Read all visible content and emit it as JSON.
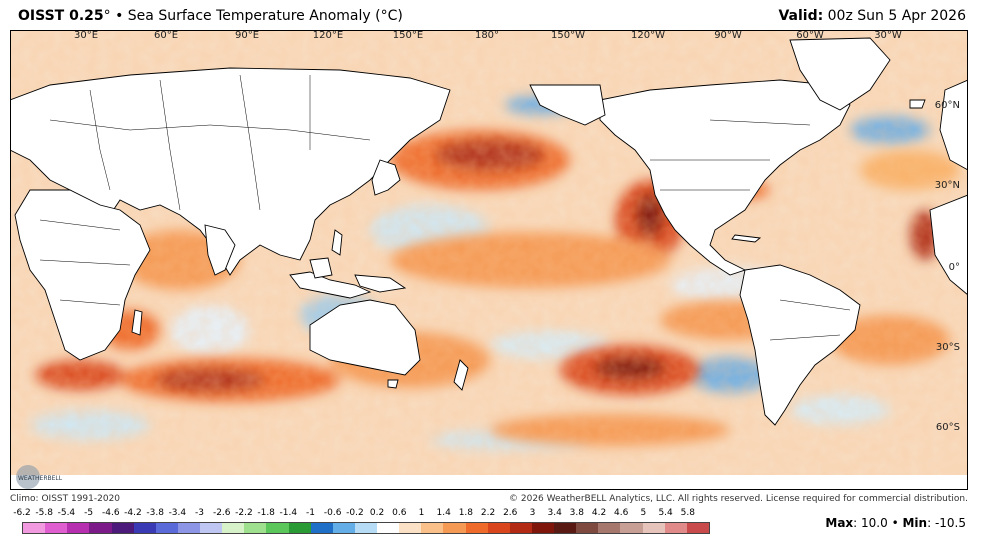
{
  "header": {
    "title_main": "OISST 0.25",
    "title_deg": "°",
    "title_sep": "•",
    "title_rest": "Sea Surface Temperature Anomaly (°C)",
    "valid_label": "Valid:",
    "valid_value": "00z Sun 5 Apr 2026"
  },
  "map": {
    "lon_labels": [
      "30°E",
      "60°E",
      "90°E",
      "120°E",
      "150°E",
      "180°",
      "150°W",
      "120°W",
      "90°W",
      "60°W",
      "30°W"
    ],
    "lat_labels": [
      "60°N",
      "30°N",
      "0°",
      "30°S",
      "60°S"
    ],
    "colors": {
      "ocean_base": "#f7e0c4",
      "land": "#ffffff",
      "border": "#000000",
      "warm_light": "#f9b36a",
      "warm_mid": "#ee6b2c",
      "warm_dark": "#b0301a",
      "warm_deep": "#6d1810",
      "cool_light": "#cfe9f7",
      "cool_mid": "#6fb1e6",
      "cool_dark": "#3a5fcf",
      "cool_green": "#3ec24a"
    }
  },
  "logo": {
    "text": "WEATHERBELL"
  },
  "footer": {
    "climo": "Climo: OISST 1991-2020",
    "copyright": "© 2026 WeatherBELL Analytics, LLC. All rights reserved. License required for commercial distribution."
  },
  "colorbar": {
    "labels": [
      "-6.2",
      "-5.8",
      "-5.4",
      "-5",
      "-4.6",
      "-4.2",
      "-3.8",
      "-3.4",
      "-3",
      "-2.6",
      "-2.2",
      "-1.8",
      "-1.4",
      "-1",
      "-0.6",
      "-0.2",
      "0.2",
      "0.6",
      "1",
      "1.4",
      "1.8",
      "2.2",
      "2.6",
      "3",
      "3.4",
      "3.8",
      "4.2",
      "4.6",
      "5",
      "5.4",
      "5.8"
    ],
    "colors": [
      "#f29ae0",
      "#e05fd0",
      "#b52fb0",
      "#7d1a8a",
      "#4b1a7a",
      "#3a3ab5",
      "#5a6ad8",
      "#8c95e6",
      "#c0c6f2",
      "#d7f2c8",
      "#9fe08f",
      "#5bc65a",
      "#2a9a35",
      "#1f6fc7",
      "#64aee8",
      "#b7dcf5",
      "#ffffff",
      "#fbe2c6",
      "#f9c08a",
      "#f59a55",
      "#ee6b2c",
      "#d9461d",
      "#b22a14",
      "#7e160c",
      "#5a1a14",
      "#7e4a3f",
      "#a6776c",
      "#c89f95",
      "#e6c4bc",
      "#e08a8a",
      "#c84a4a"
    ]
  },
  "stats": {
    "max_label": "Max",
    "max_value": "10.0",
    "min_label": "Min",
    "min_value": "-10.5",
    "sep": "•"
  }
}
